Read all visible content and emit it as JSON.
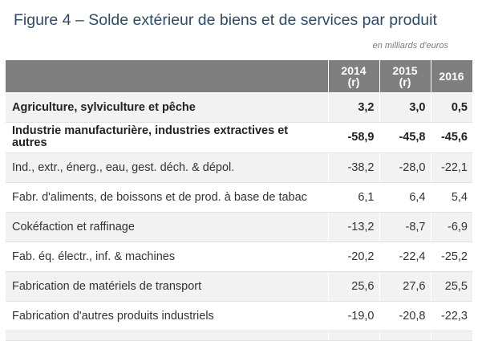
{
  "title": "Figure 4 – Solde extérieur de biens et de services par produit",
  "unit": "en milliards d'euros",
  "table": {
    "columns": [
      {
        "year": "2014",
        "note": "(r)"
      },
      {
        "year": "2015",
        "note": "(r)"
      },
      {
        "year": "2016",
        "note": ""
      }
    ],
    "rows": [
      {
        "label": "Agriculture, sylviculture et pêche",
        "values": [
          "3,2",
          "3,0",
          "0,5"
        ],
        "bold": true
      },
      {
        "label": "Industrie manufacturière, industries extractives et autres",
        "values": [
          "-58,9",
          "-45,8",
          "-45,6"
        ],
        "bold": true
      },
      {
        "label": "Ind., extr., énerg., eau, gest. déch. & dépol.",
        "values": [
          "-38,2",
          "-28,0",
          "-22,1"
        ],
        "bold": false
      },
      {
        "label": "Fabr. d'aliments, de boissons et de prod. à base de tabac",
        "values": [
          "6,1",
          "6,4",
          "5,4"
        ],
        "bold": false
      },
      {
        "label": "Cokéfaction et raffinage",
        "values": [
          "-13,2",
          "-8,7",
          "-6,9"
        ],
        "bold": false
      },
      {
        "label": "Fab. éq. électr., inf. & machines",
        "values": [
          "-20,2",
          "-22,4",
          "-25,2"
        ],
        "bold": false
      },
      {
        "label": "Fabrication de matériels de transport",
        "values": [
          "25,6",
          "27,6",
          "25,5"
        ],
        "bold": false
      },
      {
        "label": "Fabrication d'autres produits industriels",
        "values": [
          "-19,0",
          "-20,8",
          "-22,3"
        ],
        "bold": false
      }
    ]
  }
}
